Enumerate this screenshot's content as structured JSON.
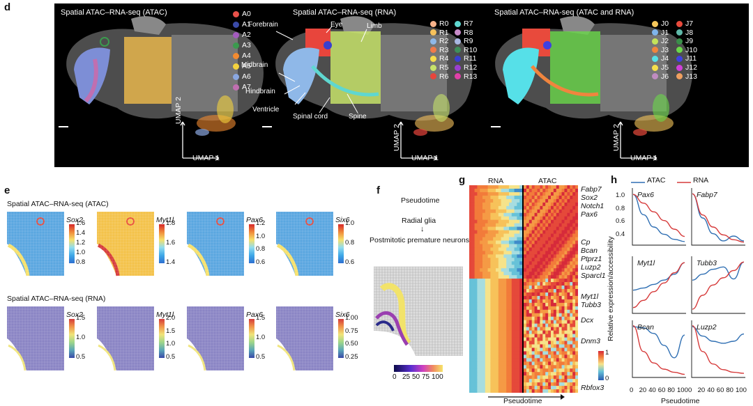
{
  "panel_d": {
    "label": "d",
    "titles": [
      "Spatial ATAC–RNA-seq (ATAC)",
      "Spatial ATAC–RNA-seq (RNA)",
      "Spatial ATAC–RNA-seq (ATAC and RNA)"
    ],
    "umap_x": "UMAP 1",
    "umap_y": "UMAP 2",
    "legend_atac": [
      {
        "name": "A0",
        "color": "#e8514a"
      },
      {
        "name": "A1",
        "color": "#3a4aa8"
      },
      {
        "name": "A2",
        "color": "#a35bbd"
      },
      {
        "name": "A3",
        "color": "#3b9a4e"
      },
      {
        "name": "A4",
        "color": "#f28b30"
      },
      {
        "name": "A5",
        "color": "#f4d23e"
      },
      {
        "name": "A6",
        "color": "#8aa7e0"
      },
      {
        "name": "A7",
        "color": "#c06fb0"
      }
    ],
    "legend_rna_col1": [
      {
        "name": "R0",
        "color": "#f7b28a"
      },
      {
        "name": "R1",
        "color": "#f6c15b"
      },
      {
        "name": "R2",
        "color": "#8fb8e8"
      },
      {
        "name": "R3",
        "color": "#f07a4a"
      },
      {
        "name": "R4",
        "color": "#f5dd4b"
      },
      {
        "name": "R5",
        "color": "#c7e36a"
      },
      {
        "name": "R6",
        "color": "#e8453c"
      }
    ],
    "legend_rna_col2": [
      {
        "name": "R7",
        "color": "#5fd7d0"
      },
      {
        "name": "R8",
        "color": "#c78bc8"
      },
      {
        "name": "R9",
        "color": "#a9b8e3"
      },
      {
        "name": "R10",
        "color": "#3e8f5a"
      },
      {
        "name": "R11",
        "color": "#3a3fd0"
      },
      {
        "name": "R12",
        "color": "#9a3fd0"
      },
      {
        "name": "R13",
        "color": "#e040a8"
      }
    ],
    "legend_joint_col1": [
      {
        "name": "J0",
        "color": "#f6c75a"
      },
      {
        "name": "J1",
        "color": "#7fb4ea"
      },
      {
        "name": "J2",
        "color": "#c3e25a"
      },
      {
        "name": "J3",
        "color": "#f0853e"
      },
      {
        "name": "J4",
        "color": "#56e0e8"
      },
      {
        "name": "J5",
        "color": "#f5e04b"
      },
      {
        "name": "J6",
        "color": "#c08cc0"
      }
    ],
    "legend_joint_col2": [
      {
        "name": "J7",
        "color": "#e84a3c"
      },
      {
        "name": "J8",
        "color": "#5fb8a8"
      },
      {
        "name": "J9",
        "color": "#3a8f4a"
      },
      {
        "name": "J10",
        "color": "#6ad84a"
      },
      {
        "name": "J11",
        "color": "#4040e0"
      },
      {
        "name": "J12",
        "color": "#d040d8"
      },
      {
        "name": "J13",
        "color": "#f0a060"
      }
    ],
    "annotations": [
      "Forebrain",
      "Eye",
      "Limb",
      "Midbrain",
      "Hindbrain",
      "Ventricle",
      "Spinal cord",
      "Spine"
    ]
  },
  "panel_e": {
    "label": "e",
    "title_atac": "Spatial ATAC–RNA-seq (ATAC)",
    "title_rna": "Spatial ATAC–RNA-seq (RNA)",
    "genes": [
      "Sox2",
      "Myt1l",
      "Pax6",
      "Six6"
    ],
    "atac_ticks": [
      [
        "1.6",
        "1.4",
        "1.2",
        "1.0",
        "0.8"
      ],
      [
        "1.8",
        "1.6",
        "1.4"
      ],
      [
        "1.2",
        "1.0",
        "0.8",
        "0.6"
      ],
      [
        "1.0",
        "0.8",
        "0.6"
      ]
    ],
    "rna_ticks": [
      [
        "1.5",
        "1.0",
        "0.5"
      ],
      [
        "2.0",
        "1.5",
        "1.0",
        "0.5"
      ],
      [
        "1.5",
        "1.0",
        "0.5"
      ],
      [
        "1.00",
        "0.75",
        "0.50",
        "0.25"
      ]
    ]
  },
  "panel_f": {
    "label": "f",
    "pseudotime_title": "Pseudotime",
    "from": "Radial glia",
    "arrow": "↓",
    "to": "Postmitotic premature neurons",
    "colorbar_ticks": [
      "0",
      "25",
      "50",
      "75",
      "100"
    ]
  },
  "panel_g": {
    "label": "g",
    "col_rna": "RNA",
    "col_atac": "ATAC",
    "genes": [
      "Fabp7",
      "Sox2",
      "Notch1",
      "Pax6",
      "Cp",
      "Bcan",
      "Ptprz1",
      "Luzp2",
      "Sparcl1",
      "Myt1l",
      "Tubb3",
      "Dcx",
      "Dnm3",
      "Rbfox3"
    ],
    "colorbar_ticks": [
      "1",
      "0"
    ],
    "xlabel": "Pseudotime"
  },
  "panel_h": {
    "label": "h",
    "legend": [
      {
        "name": "ATAC",
        "color": "#2f6fb3"
      },
      {
        "name": "RNA",
        "color": "#d63a3a"
      }
    ],
    "ylabel": "Relative expression/accessibility",
    "xlabel": "Pseudotime",
    "xticks": [
      "0",
      "20",
      "40",
      "60",
      "80",
      "100"
    ],
    "yticks": [
      "1.0",
      "0.8",
      "0.6",
      "0.4"
    ],
    "chart_data": [
      {
        "type": "line",
        "title": "Pax6",
        "x": [
          0,
          20,
          40,
          60,
          80,
          100
        ],
        "series": [
          {
            "name": "ATAC",
            "values": [
              1.0,
              0.72,
              0.55,
              0.45,
              0.38,
              0.35
            ]
          },
          {
            "name": "RNA",
            "values": [
              1.0,
              0.88,
              0.76,
              0.64,
              0.52,
              0.42
            ]
          }
        ],
        "ylim": [
          0.3,
          1.05
        ]
      },
      {
        "type": "line",
        "title": "Fabp7",
        "x": [
          0,
          20,
          40,
          60,
          80,
          100
        ],
        "series": [
          {
            "name": "ATAC",
            "values": [
              1.0,
              0.6,
              0.34,
              0.22,
              0.3,
              0.22
            ]
          },
          {
            "name": "RNA",
            "values": [
              1.0,
              0.65,
              0.45,
              0.32,
              0.24,
              0.2
            ]
          }
        ],
        "ylim": [
          0.15,
          1.05
        ]
      },
      {
        "type": "line",
        "title": "Myt1l",
        "x": [
          0,
          20,
          40,
          60,
          80,
          100
        ],
        "series": [
          {
            "name": "ATAC",
            "values": [
              0.62,
              0.65,
              0.7,
              0.76,
              0.84,
              1.0
            ]
          },
          {
            "name": "RNA",
            "values": [
              0.38,
              0.48,
              0.6,
              0.72,
              0.86,
              1.0
            ]
          }
        ],
        "ylim": [
          0.3,
          1.05
        ]
      },
      {
        "type": "line",
        "title": "Tubb3",
        "x": [
          0,
          20,
          40,
          60,
          80,
          100
        ],
        "series": [
          {
            "name": "ATAC",
            "values": [
              0.7,
              0.8,
              0.88,
              0.92,
              0.72,
              1.0
            ]
          },
          {
            "name": "RNA",
            "values": [
              0.22,
              0.45,
              0.62,
              0.74,
              0.86,
              1.0
            ]
          }
        ],
        "ylim": [
          0.15,
          1.05
        ]
      },
      {
        "type": "line",
        "title": "Bcan",
        "x": [
          0,
          20,
          40,
          60,
          80,
          100
        ],
        "series": [
          {
            "name": "ATAC",
            "values": [
              0.98,
              0.96,
              0.85,
              0.62,
              0.38,
              0.82
            ]
          },
          {
            "name": "RNA",
            "values": [
              1.0,
              0.5,
              0.28,
              0.16,
              0.1,
              0.06
            ]
          }
        ],
        "ylim": [
          0.0,
          1.05
        ]
      },
      {
        "type": "line",
        "title": "Luzp2",
        "x": [
          0,
          20,
          40,
          60,
          80,
          100
        ],
        "series": [
          {
            "name": "ATAC",
            "values": [
              0.98,
              0.8,
              0.7,
              0.66,
              0.7,
              0.84
            ]
          },
          {
            "name": "RNA",
            "values": [
              1.0,
              0.5,
              0.26,
              0.15,
              0.1,
              0.08
            ]
          }
        ],
        "ylim": [
          0.0,
          1.05
        ]
      }
    ]
  }
}
